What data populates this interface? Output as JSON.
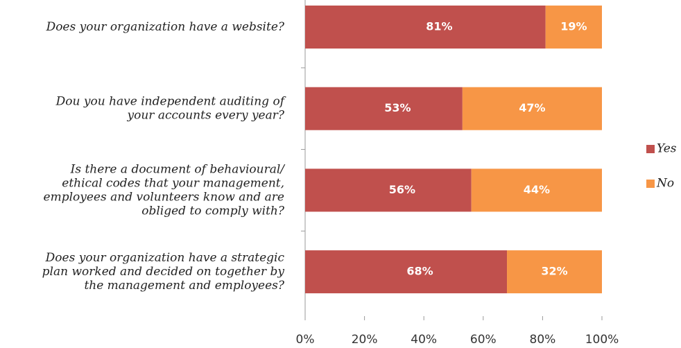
{
  "chart_data": {
    "type": "stacked_barh",
    "categories": [
      "Does your organization have a website?",
      "Dou you have independent auditing of\nyour accounts every year?",
      "Is there a document of behavioural/\nethical codes that your management,\nemployees and volunteers know and are\nobliged to comply with?",
      "Does your organization have a strategic\nplan worked and decided on together by\nthe management and employees?"
    ],
    "series": [
      {
        "name": "Yes",
        "color": "#c0504d",
        "values": [
          81,
          53,
          56,
          68
        ],
        "value_labels": [
          "81%",
          "53%",
          "56%",
          "68%"
        ]
      },
      {
        "name": "No",
        "color": "#f79646",
        "values": [
          19,
          47,
          44,
          32
        ],
        "value_labels": [
          "19%",
          "47%",
          "44%",
          "32%"
        ]
      }
    ],
    "xlim": [
      0,
      100
    ],
    "xticks": [
      {
        "value": 0,
        "label": "0%"
      },
      {
        "value": 20,
        "label": "20%"
      },
      {
        "value": 40,
        "label": "40%"
      },
      {
        "value": 60,
        "label": "60%"
      },
      {
        "value": 80,
        "label": "80%"
      },
      {
        "value": 100,
        "label": "100%"
      }
    ],
    "legend": "right"
  }
}
